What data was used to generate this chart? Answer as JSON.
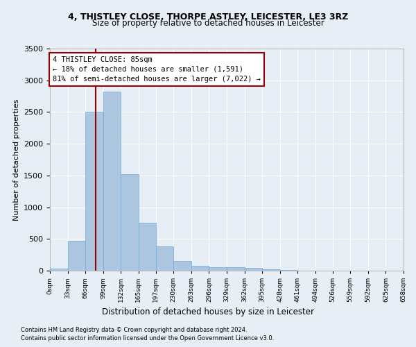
{
  "title1": "4, THISTLEY CLOSE, THORPE ASTLEY, LEICESTER, LE3 3RZ",
  "title2": "Size of property relative to detached houses in Leicester",
  "xlabel": "Distribution of detached houses by size in Leicester",
  "ylabel": "Number of detached properties",
  "footnote1": "Contains HM Land Registry data © Crown copyright and database right 2024.",
  "footnote2": "Contains public sector information licensed under the Open Government Licence v3.0.",
  "annotation_line1": "4 THISTLEY CLOSE: 85sqm",
  "annotation_line2": "← 18% of detached houses are smaller (1,591)",
  "annotation_line3": "81% of semi-detached houses are larger (7,022) →",
  "bar_color": "#adc6e0",
  "bar_edge_color": "#6aabe0",
  "red_line_color": "#9b0000",
  "red_line_x": 85,
  "bin_edges": [
    0,
    33,
    66,
    99,
    132,
    165,
    197,
    230,
    263,
    296,
    329,
    362,
    395,
    428,
    461,
    494,
    526,
    559,
    592,
    625,
    658
  ],
  "bar_heights": [
    28,
    475,
    2510,
    2820,
    1520,
    750,
    385,
    148,
    72,
    52,
    52,
    48,
    23,
    13,
    5,
    0,
    0,
    0,
    0,
    0
  ],
  "ylim": [
    0,
    3500
  ],
  "yticks": [
    0,
    500,
    1000,
    1500,
    2000,
    2500,
    3000,
    3500
  ],
  "xlim": [
    0,
    658
  ],
  "bg_color": "#e8eef5",
  "plot_bg_color": "#e8eef5",
  "grid_color": "#ffffff",
  "title1_fontsize": 9,
  "title2_fontsize": 8.5,
  "ylabel_fontsize": 8,
  "xlabel_fontsize": 8.5,
  "ytick_fontsize": 8,
  "xtick_fontsize": 6.5,
  "footnote_fontsize": 6,
  "annot_fontsize": 7.5
}
